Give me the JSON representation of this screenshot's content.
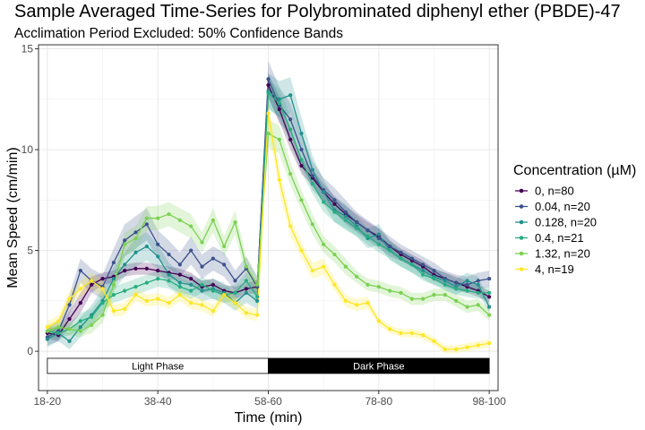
{
  "chart_data": {
    "type": "line",
    "title": "Sample Averaged Time-Series for Polybrominated diphenyl ether (PBDE)-47",
    "subtitle": "Acclimation Period Excluded: 50% Confidence Bands",
    "xlabel": "Time (min)",
    "ylabel": "Mean Speed (cm/min)",
    "x_ticks": [
      "18-20",
      "38-40",
      "58-60",
      "78-80",
      "98-100"
    ],
    "x_tick_values": [
      0,
      20,
      40,
      60,
      80
    ],
    "y_ticks": [
      "0",
      "5",
      "10",
      "15"
    ],
    "y_tick_values": [
      0,
      5,
      10,
      15
    ],
    "xlim": [
      -1.6,
      81.6
    ],
    "ylim": [
      -1.95,
      15.2
    ],
    "grid": true,
    "legend_title": "Concentration (µM)",
    "legend_position": "right",
    "band_level": 0.5,
    "phases": [
      {
        "label": "Light Phase",
        "x_start": 0,
        "x_end": 40,
        "fill": "#ffffff",
        "text_color": "#000000"
      },
      {
        "label": "Dark Phase",
        "x_start": 40,
        "x_end": 80,
        "fill": "#000000",
        "text_color": "#ffffff"
      }
    ],
    "phase_y": [
      -1.1,
      -0.35
    ],
    "x": [
      0,
      2,
      4,
      6,
      8,
      10,
      12,
      14,
      16,
      18,
      20,
      22,
      24,
      26,
      28,
      30,
      32,
      34,
      36,
      38,
      40,
      42,
      44,
      46,
      48,
      50,
      52,
      54,
      56,
      58,
      60,
      62,
      64,
      66,
      68,
      70,
      72,
      74,
      76,
      78,
      80
    ],
    "series": [
      {
        "name": "0, n=80",
        "color": "#440154",
        "values": [
          0.9,
          0.8,
          1.6,
          2.4,
          3.3,
          3.6,
          3.7,
          4.0,
          4.1,
          4.1,
          4.0,
          3.9,
          3.8,
          3.6,
          3.2,
          3.3,
          3.0,
          2.9,
          3.1,
          3.2,
          13.2,
          12.0,
          10.5,
          9.2,
          8.6,
          7.9,
          7.3,
          6.8,
          6.4,
          6.0,
          5.7,
          5.2,
          4.8,
          4.5,
          4.2,
          3.8,
          3.6,
          3.4,
          3.2,
          3.0,
          2.7
        ],
        "band": [
          0.3,
          0.3,
          0.4,
          0.5,
          0.4,
          0.3,
          0.3,
          0.3,
          0.3,
          0.3,
          0.3,
          0.3,
          0.3,
          0.3,
          0.3,
          0.3,
          0.3,
          0.3,
          0.3,
          0.3,
          0.6,
          0.6,
          0.5,
          0.4,
          0.4,
          0.4,
          0.4,
          0.4,
          0.4,
          0.4,
          0.4,
          0.3,
          0.3,
          0.3,
          0.3,
          0.3,
          0.3,
          0.3,
          0.3,
          0.3,
          0.3
        ]
      },
      {
        "name": "0.04, n=20",
        "color": "#3b528b",
        "values": [
          0.7,
          1.0,
          2.3,
          4.0,
          3.5,
          3.2,
          4.4,
          5.5,
          5.9,
          6.3,
          5.3,
          4.8,
          4.3,
          5.0,
          4.2,
          4.6,
          4.3,
          3.5,
          4.1,
          3.2,
          13.5,
          12.2,
          11.5,
          10.0,
          8.7,
          8.0,
          7.5,
          6.9,
          6.4,
          6.0,
          5.6,
          5.2,
          4.9,
          4.6,
          4.3,
          4.0,
          3.6,
          3.4,
          3.3,
          3.5,
          3.6
        ],
        "band": [
          0.4,
          0.5,
          0.5,
          0.6,
          0.6,
          0.6,
          0.7,
          0.8,
          0.8,
          0.8,
          0.7,
          0.7,
          0.6,
          0.7,
          0.6,
          0.6,
          0.6,
          0.5,
          0.6,
          0.5,
          0.9,
          0.9,
          0.8,
          0.8,
          0.7,
          0.6,
          0.6,
          0.6,
          0.5,
          0.5,
          0.5,
          0.5,
          0.4,
          0.4,
          0.4,
          0.4,
          0.4,
          0.4,
          0.4,
          0.4,
          0.4
        ]
      },
      {
        "name": "0.128, n=20",
        "color": "#21908d",
        "values": [
          0.6,
          0.9,
          0.5,
          1.2,
          1.8,
          2.5,
          3.6,
          4.3,
          4.9,
          5.2,
          4.7,
          3.8,
          3.4,
          3.3,
          3.0,
          3.1,
          2.9,
          2.4,
          2.9,
          2.5,
          12.9,
          12.5,
          12.7,
          10.8,
          9.0,
          7.9,
          7.0,
          6.7,
          6.2,
          5.6,
          5.8,
          5.0,
          4.6,
          4.3,
          4.0,
          3.7,
          3.5,
          3.2,
          3.5,
          3.3,
          2.2
        ],
        "band": [
          0.4,
          0.4,
          0.4,
          0.5,
          0.5,
          0.6,
          0.6,
          0.6,
          0.7,
          0.7,
          0.6,
          0.6,
          0.5,
          0.5,
          0.5,
          0.5,
          0.5,
          0.4,
          0.5,
          0.4,
          0.9,
          0.9,
          0.9,
          0.8,
          0.7,
          0.6,
          0.6,
          0.6,
          0.5,
          0.5,
          0.5,
          0.5,
          0.4,
          0.4,
          0.4,
          0.4,
          0.4,
          0.4,
          0.4,
          0.4,
          0.3
        ]
      },
      {
        "name": "0.4, n=21",
        "color": "#27ad81",
        "values": [
          1.0,
          0.9,
          1.1,
          1.5,
          1.7,
          2.4,
          2.8,
          3.0,
          3.2,
          3.4,
          3.6,
          3.5,
          3.2,
          3.0,
          3.3,
          3.0,
          2.8,
          2.9,
          3.5,
          2.7,
          12.8,
          12.3,
          11.0,
          9.5,
          8.3,
          7.4,
          6.9,
          6.5,
          6.1,
          5.7,
          5.3,
          5.0,
          4.6,
          4.3,
          3.8,
          3.6,
          3.3,
          3.1,
          3.0,
          2.9,
          2.9
        ],
        "band": [
          0.3,
          0.3,
          0.3,
          0.4,
          0.4,
          0.4,
          0.4,
          0.4,
          0.4,
          0.4,
          0.4,
          0.4,
          0.4,
          0.4,
          0.4,
          0.4,
          0.4,
          0.4,
          0.4,
          0.4,
          0.7,
          0.7,
          0.7,
          0.6,
          0.5,
          0.5,
          0.5,
          0.5,
          0.4,
          0.4,
          0.4,
          0.4,
          0.4,
          0.4,
          0.3,
          0.3,
          0.3,
          0.3,
          0.3,
          0.3,
          0.3
        ]
      },
      {
        "name": "1.32, n=20",
        "color": "#7ad151",
        "values": [
          1.0,
          1.2,
          1.1,
          1.0,
          1.3,
          1.8,
          3.3,
          5.3,
          5.6,
          6.6,
          6.6,
          6.8,
          6.5,
          6.2,
          5.4,
          6.5,
          5.2,
          6.4,
          4.2,
          3.3,
          10.8,
          10.5,
          8.8,
          7.5,
          6.3,
          5.3,
          4.8,
          4.2,
          3.7,
          3.3,
          3.2,
          3.0,
          2.9,
          2.6,
          2.6,
          2.8,
          2.8,
          2.5,
          2.2,
          2.3,
          1.8
        ],
        "band": [
          0.3,
          0.3,
          0.3,
          0.3,
          0.4,
          0.4,
          0.5,
          0.6,
          0.6,
          0.6,
          0.6,
          0.6,
          0.6,
          0.6,
          0.5,
          0.6,
          0.5,
          0.6,
          0.5,
          0.4,
          0.7,
          0.7,
          0.6,
          0.5,
          0.5,
          0.4,
          0.4,
          0.4,
          0.3,
          0.3,
          0.3,
          0.3,
          0.3,
          0.3,
          0.3,
          0.3,
          0.3,
          0.3,
          0.3,
          0.3,
          0.3
        ]
      },
      {
        "name": "4, n=19",
        "color": "#fde725",
        "values": [
          1.2,
          1.5,
          2.6,
          3.1,
          3.5,
          3.1,
          2.0,
          2.1,
          2.8,
          2.5,
          2.6,
          2.4,
          2.8,
          2.4,
          2.3,
          2.0,
          2.8,
          2.4,
          1.9,
          1.8,
          11.8,
          8.5,
          6.2,
          5.0,
          4.0,
          4.2,
          3.3,
          2.5,
          2.3,
          2.4,
          1.5,
          1.1,
          0.9,
          0.9,
          0.8,
          0.5,
          0.1,
          0.1,
          0.2,
          0.3,
          0.4
        ],
        "band": [
          0.3,
          0.3,
          0.4,
          0.4,
          0.4,
          0.4,
          0.3,
          0.3,
          0.3,
          0.3,
          0.3,
          0.3,
          0.3,
          0.3,
          0.3,
          0.3,
          0.3,
          0.3,
          0.3,
          0.3,
          0.6,
          0.6,
          0.5,
          0.4,
          0.4,
          0.4,
          0.3,
          0.3,
          0.3,
          0.3,
          0.2,
          0.2,
          0.2,
          0.2,
          0.2,
          0.2,
          0.2,
          0.2,
          0.2,
          0.2,
          0.2
        ]
      }
    ]
  }
}
